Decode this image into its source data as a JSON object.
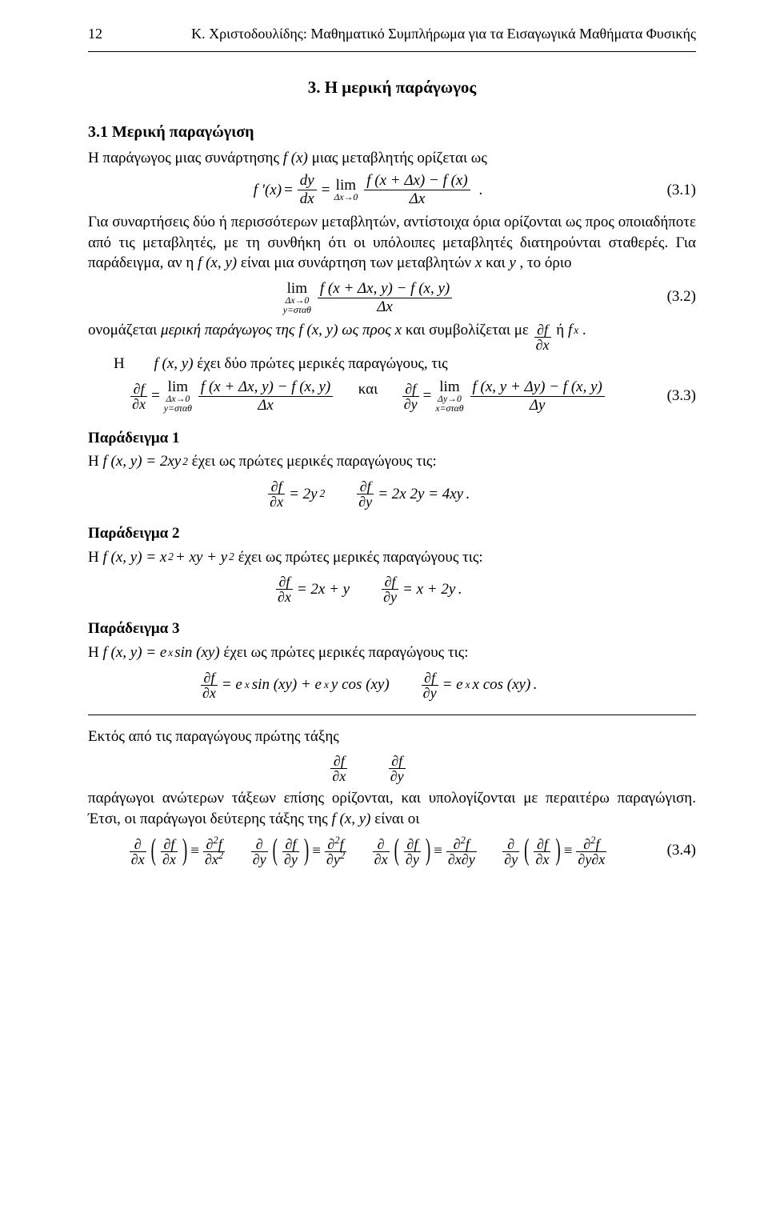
{
  "header": {
    "pagenum": "12",
    "running": "Κ. Χριστοδουλίδης: Μαθηματικό Συμπλήρωμα για τα Εισαγωγικά Μαθήματα Φυσικής"
  },
  "chapter_title": "3. Η μερική παράγωγος",
  "section_title": "3.1 Μερική παραγώγιση",
  "t": {
    "p1a": "Η παράγωγος μιας συνάρτησης ",
    "p1b": " μιας μεταβλητής ορίζεται ως",
    "p2": "Για συναρτήσεις δύο ή περισσότερων μεταβλητών, αντίστοιχα όρια ορίζονται ως προς οποιαδήποτε από τις μεταβλητές, με τη συνθήκη ότι οι υπόλοιπες μεταβλητές διατηρούνται σταθερές. Για παράδειγμα, αν η ",
    "p2b": " είναι μια συνάρτηση των μεταβλητών ",
    "p2c": " και ",
    "p2d": " , το όριο",
    "p3a": "ονομάζεται ",
    "p3b": "μερική παράγωγος της ",
    "p3c": " ως προς ",
    "p3d": " και συμβολίζεται με ",
    "p3e": " ή ",
    "p3f": ".",
    "p4a": "Η ",
    "p4b": " έχει δύο πρώτες μερικές παραγώγους, τις",
    "and": "και",
    "ex1": "Παράδειγμα 1",
    "ex1_a": "Η ",
    "ex1_b": " έχει ως πρώτες μερικές παραγώγους τις:",
    "ex2": "Παράδειγμα 2",
    "ex2_a": "Η ",
    "ex2_b": " έχει ως πρώτες μερικές παραγώγους τις:",
    "ex3": "Παράδειγμα 3",
    "ex3_a": "Η ",
    "ex3_b": " έχει ως πρώτες μερικές παραγώγους τις:",
    "p5": "Εκτός από τις παραγώγους πρώτης τάξης",
    "p6": "παράγωγοι ανώτερων τάξεων επίσης ορίζονται, και υπολογίζονται με περαιτέρω παραγώγιση. Έτσι, οι παράγωγοι δεύτερης τάξης της ",
    "p6b": " είναι οι"
  },
  "eqnum": {
    "e31": "(3.1)",
    "e32": "(3.2)",
    "e33": "(3.3)",
    "e34": "(3.4)"
  },
  "inline": {
    "fx": "f (x)",
    "fxy": "f (x, y)",
    "x": "x",
    "y": "y",
    "fsubx": "f",
    "fsubx_sub": "x",
    "partial": "∂",
    "dy": "dy",
    "dx": "dx",
    "Dx": "Δx",
    "Dy": "Δy",
    "lim": "lim",
    "to0x": "Δx→0",
    "to0y": "Δy→0",
    "ystath": "y=σταθ",
    "xstath": "x=σταθ",
    "fprime": "f ′(x)",
    "fxpdx": "f (x + Δx) − f (x)",
    "fxyA": "f (x + Δx, y) − f (x, y)",
    "fxyB": "f (x, y + Δy) − f (x, y)",
    "dfdx": "∂f",
    "dfdx_b": "∂x",
    "dfdy_b": "∂y",
    "ex1_fxy": "f (x, y) = 2xy",
    "sq": "2",
    "ex1_r1": " = 2y",
    "ex1_r2": " = 2x 2y = 4xy",
    "ex2_fxy": "f (x, y) = x",
    "ex2_fxy2": " + xy + y",
    "ex2_r1": " = 2x + y",
    "ex2_r2": " = x + 2y",
    "ex3_fxy": "f (x, y) = e",
    "xsup": "x",
    "ex3_fxy2": " sin (xy)",
    "ex3_r1a": " = e",
    "ex3_r1b": " sin (xy) + e",
    "ex3_r1c": " y cos (xy)",
    "ex3_r2a": " = e",
    "ex3_r2b": " x cos (xy)",
    "eq34_d2x": "∂",
    "eq34_d2f": "f",
    "identsym": "≡",
    "period": "."
  }
}
